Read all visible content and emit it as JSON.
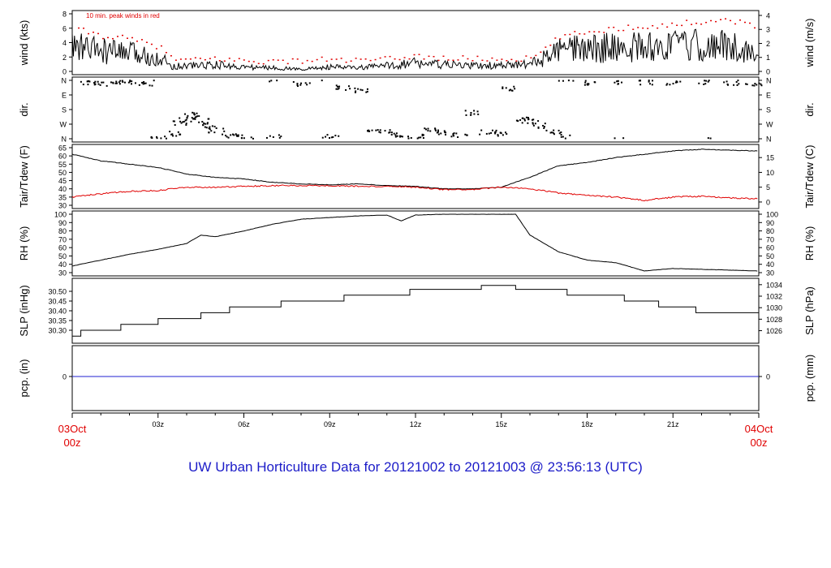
{
  "footer_title": "UW Urban Horticulture Data for 20121002  to  20121003 @ 23:56:13  (UTC)",
  "colors": {
    "main_line": "#000000",
    "peak_wind": "#e00000",
    "dewpoint": "#e00000",
    "precip_line": "#2020d0",
    "date_label": "#e00000",
    "title": "#1c1cc8"
  },
  "x_axis": {
    "start_label": [
      "03Oct",
      "00z"
    ],
    "end_label": [
      "04Oct",
      "00z"
    ],
    "tick_labels": [
      "03z",
      "06z",
      "09z",
      "12z",
      "15z",
      "18z",
      "21z"
    ]
  },
  "chart_data": [
    {
      "type": "line",
      "ylabel": "wind (kts)",
      "ylabel_right": "wind (m/s)",
      "annotation": "10 min. peak winds in red",
      "ylim": [
        0,
        8
      ],
      "yticks": [
        "0",
        "2",
        "4",
        "6",
        "8"
      ],
      "yticks_right": [
        "0",
        "1",
        "2",
        "3",
        "4"
      ],
      "series": [
        {
          "name": "wind",
          "color": "#000000",
          "x": [
            0,
            1,
            2,
            3,
            3.5,
            4,
            5,
            6,
            7,
            8,
            9,
            10,
            11,
            12,
            13,
            14,
            15,
            16,
            16.5,
            17,
            18,
            19,
            20,
            21,
            22,
            23,
            24
          ],
          "values": [
            3.5,
            2.8,
            2.5,
            2.0,
            0.7,
            0.8,
            0.9,
            0.6,
            0.5,
            0.3,
            0.6,
            0.5,
            0.8,
            1.2,
            0.9,
            0.8,
            0.8,
            1.0,
            1.8,
            2.8,
            3.2,
            3.3,
            3.4,
            3.5,
            3.6,
            3.5,
            2.5
          ]
        },
        {
          "name": "peak",
          "color": "#e00000",
          "x": [
            0,
            1,
            2,
            3,
            3.5,
            4,
            5,
            6,
            7,
            8,
            9,
            10,
            11,
            12,
            13,
            14,
            15,
            16,
            16.5,
            17,
            18,
            19,
            20,
            21,
            22,
            23,
            24
          ],
          "values": [
            6.0,
            5.0,
            4.5,
            3.5,
            1.8,
            1.5,
            1.8,
            1.5,
            1.4,
            1.5,
            1.7,
            1.5,
            1.7,
            2.2,
            1.8,
            1.8,
            1.7,
            1.8,
            3.0,
            4.8,
            5.5,
            6.0,
            6.3,
            6.5,
            7.0,
            7.2,
            6.0
          ]
        }
      ]
    },
    {
      "type": "scatter",
      "ylabel": "dir.",
      "ylabel_right": "dir.",
      "yticks": [
        "N",
        "W",
        "S",
        "E",
        "N"
      ],
      "yticks_right": [
        "N",
        "W",
        "S",
        "E",
        "N"
      ],
      "ylim": [
        0,
        360
      ],
      "series": [
        {
          "name": "direction",
          "color": "#000000",
          "x": [
            0.5,
            1.0,
            1.5,
            2.0,
            2.5,
            3.0,
            3.5,
            3.8,
            4.0,
            4.2,
            4.5,
            4.8,
            5.0,
            5.5,
            6.0,
            7.0,
            8.0,
            9.0,
            9.5,
            10.0,
            10.5,
            11.0,
            11.5,
            12.0,
            12.5,
            13.0,
            13.5,
            14.0,
            14.5,
            15.0,
            15.3,
            15.8,
            16.0,
            16.3,
            16.8,
            17.2,
            18.0,
            19.0,
            20.0,
            21.0,
            22.0,
            23.0,
            23.8
          ],
          "values": [
            345,
            340,
            350,
            345,
            340,
            5,
            30,
            95,
            120,
            150,
            110,
            80,
            50,
            15,
            10,
            8,
            335,
            12,
            315,
            300,
            60,
            40,
            20,
            12,
            60,
            35,
            20,
            160,
            40,
            30,
            310,
            110,
            120,
            80,
            40,
            10,
            345,
            350,
            345,
            340,
            350,
            345,
            340
          ]
        }
      ]
    },
    {
      "type": "line",
      "ylabel": "Tair/Tdew (F)",
      "ylabel_right": "Tair/Tdew (C)",
      "ylim": [
        30,
        65
      ],
      "yticks": [
        "30",
        "35",
        "40",
        "45",
        "50",
        "55",
        "60",
        "65"
      ],
      "yticks_right": [
        "0",
        "5",
        "10",
        "15"
      ],
      "series": [
        {
          "name": "Tair",
          "color": "#000000",
          "x": [
            0,
            1,
            2,
            3,
            4,
            5,
            6,
            7,
            8,
            9,
            10,
            11,
            12,
            13,
            14,
            15,
            16,
            17,
            18,
            19,
            20,
            21,
            22,
            23,
            24
          ],
          "values": [
            61,
            57,
            55,
            53,
            49,
            47,
            46,
            44,
            43,
            42.5,
            43,
            42,
            41.5,
            40,
            40,
            41,
            47,
            54,
            56,
            59,
            61,
            63,
            64,
            63.5,
            63
          ]
        },
        {
          "name": "Tdew",
          "color": "#e00000",
          "x": [
            0,
            1,
            2,
            3,
            4,
            5,
            6,
            7,
            8,
            9,
            10,
            11,
            12,
            13,
            14,
            15,
            16,
            17,
            18,
            19,
            20,
            21,
            22,
            23,
            24
          ],
          "values": [
            35,
            37,
            38.5,
            39,
            41,
            41,
            41.5,
            42,
            42,
            42,
            41.5,
            41.5,
            41,
            39.5,
            39.5,
            41,
            40,
            37.5,
            36,
            35,
            33,
            35,
            35.5,
            34.5,
            34
          ]
        }
      ]
    },
    {
      "type": "line",
      "ylabel": "RH (%)",
      "ylabel_right": "RH (%)",
      "ylim": [
        30,
        100
      ],
      "yticks": [
        "30",
        "40",
        "50",
        "60",
        "70",
        "80",
        "90",
        "100"
      ],
      "yticks_right": [
        "30",
        "40",
        "50",
        "60",
        "70",
        "80",
        "90",
        "100"
      ],
      "series": [
        {
          "name": "RH",
          "color": "#000000",
          "x": [
            0,
            1,
            2,
            3,
            4,
            4.5,
            5,
            6,
            7,
            8,
            9,
            10,
            11,
            11.5,
            12,
            13,
            14,
            15,
            15.5,
            16,
            17,
            18,
            19,
            20,
            21,
            22,
            23,
            24
          ],
          "values": [
            38,
            45,
            52,
            58,
            65,
            75,
            73,
            80,
            88,
            94,
            96,
            98,
            99,
            92,
            99,
            100,
            100,
            100,
            100,
            75,
            55,
            45,
            42,
            32,
            35,
            34,
            33,
            32
          ]
        }
      ]
    },
    {
      "type": "line",
      "ylabel": "SLP (inHg)",
      "ylabel_right": "SLP (hPa)",
      "ylim": [
        30.25,
        30.55
      ],
      "yticks": [
        "30.30",
        "30.35",
        "30.40",
        "30.45",
        "30.50"
      ],
      "yticks_right": [
        "1026",
        "1028",
        "1030",
        "1032",
        "1034"
      ],
      "series": [
        {
          "name": "SLP",
          "color": "#000000",
          "x": [
            0,
            0.3,
            0.3,
            1.7,
            1.7,
            3.0,
            3.0,
            4.5,
            4.5,
            5.5,
            5.5,
            7.3,
            7.3,
            9.5,
            9.5,
            11.8,
            11.8,
            12.1,
            12.1,
            14.3,
            14.3,
            15.5,
            15.5,
            17.3,
            17.3,
            19.3,
            19.3,
            20.5,
            20.5,
            21.8,
            21.8,
            24
          ],
          "values": [
            30.27,
            30.27,
            30.3,
            30.3,
            30.33,
            30.33,
            30.36,
            30.36,
            30.39,
            30.39,
            30.42,
            30.42,
            30.45,
            30.45,
            30.48,
            30.48,
            30.51,
            30.51,
            30.51,
            30.51,
            30.53,
            30.53,
            30.51,
            30.51,
            30.48,
            30.48,
            30.45,
            30.45,
            30.42,
            30.42,
            30.39,
            30.39
          ]
        }
      ]
    },
    {
      "type": "line",
      "ylabel": "pcp. (in)",
      "ylabel_right": "pcp. (mm)",
      "yticks": [
        "0"
      ],
      "yticks_right": [
        "0"
      ],
      "series": [
        {
          "name": "precip",
          "color": "#2020d0",
          "x": [
            0,
            24
          ],
          "values": [
            0,
            0
          ]
        }
      ]
    }
  ]
}
